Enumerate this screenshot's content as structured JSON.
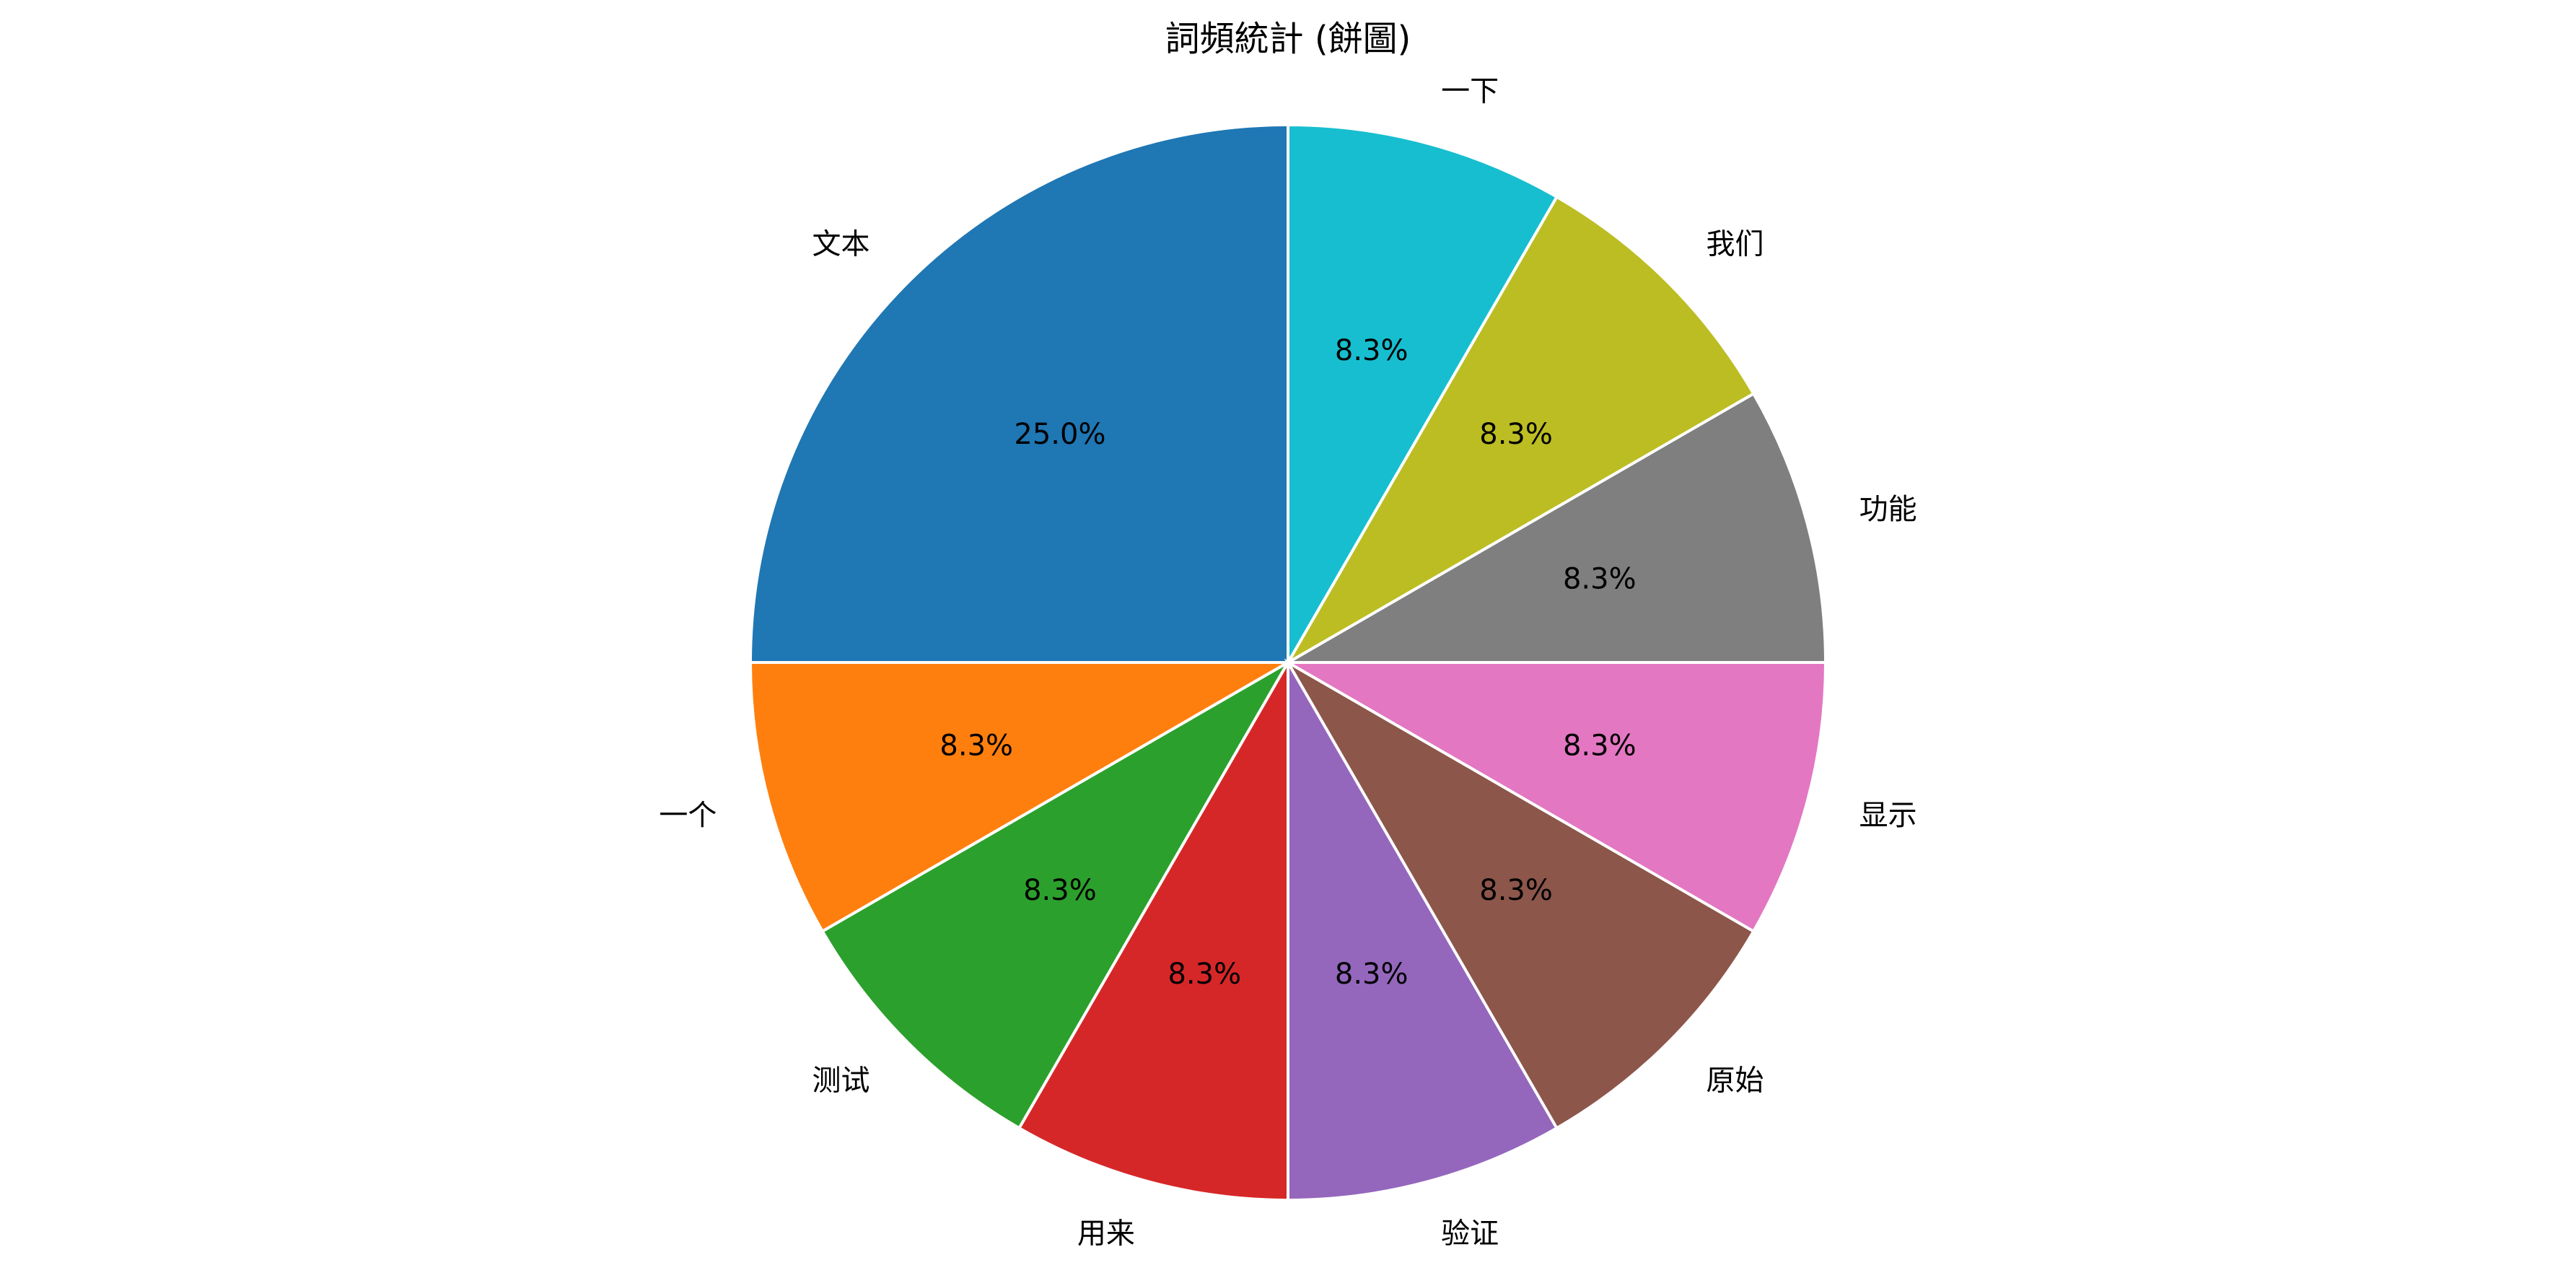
{
  "chart_data": {
    "type": "pie",
    "title": "詞頻統計 (餅圖)",
    "start_angle_deg": 90,
    "direction": "counterclockwise",
    "slices": [
      {
        "label": "文本",
        "value": 3,
        "percent_label": "25.0%",
        "color": "#1f77b4"
      },
      {
        "label": "一个",
        "value": 1,
        "percent_label": "8.3%",
        "color": "#ff7f0e"
      },
      {
        "label": "测试",
        "value": 1,
        "percent_label": "8.3%",
        "color": "#2ca02c"
      },
      {
        "label": "用来",
        "value": 1,
        "percent_label": "8.3%",
        "color": "#d62728"
      },
      {
        "label": "验证",
        "value": 1,
        "percent_label": "8.3%",
        "color": "#9467bd"
      },
      {
        "label": "原始",
        "value": 1,
        "percent_label": "8.3%",
        "color": "#8c564b"
      },
      {
        "label": "显示",
        "value": 1,
        "percent_label": "8.3%",
        "color": "#e377c2"
      },
      {
        "label": "功能",
        "value": 1,
        "percent_label": "8.3%",
        "color": "#7f7f7f"
      },
      {
        "label": "我们",
        "value": 1,
        "percent_label": "8.3%",
        "color": "#bcbd22"
      },
      {
        "label": "一下",
        "value": 1,
        "percent_label": "8.3%",
        "color": "#17becf"
      }
    ]
  }
}
